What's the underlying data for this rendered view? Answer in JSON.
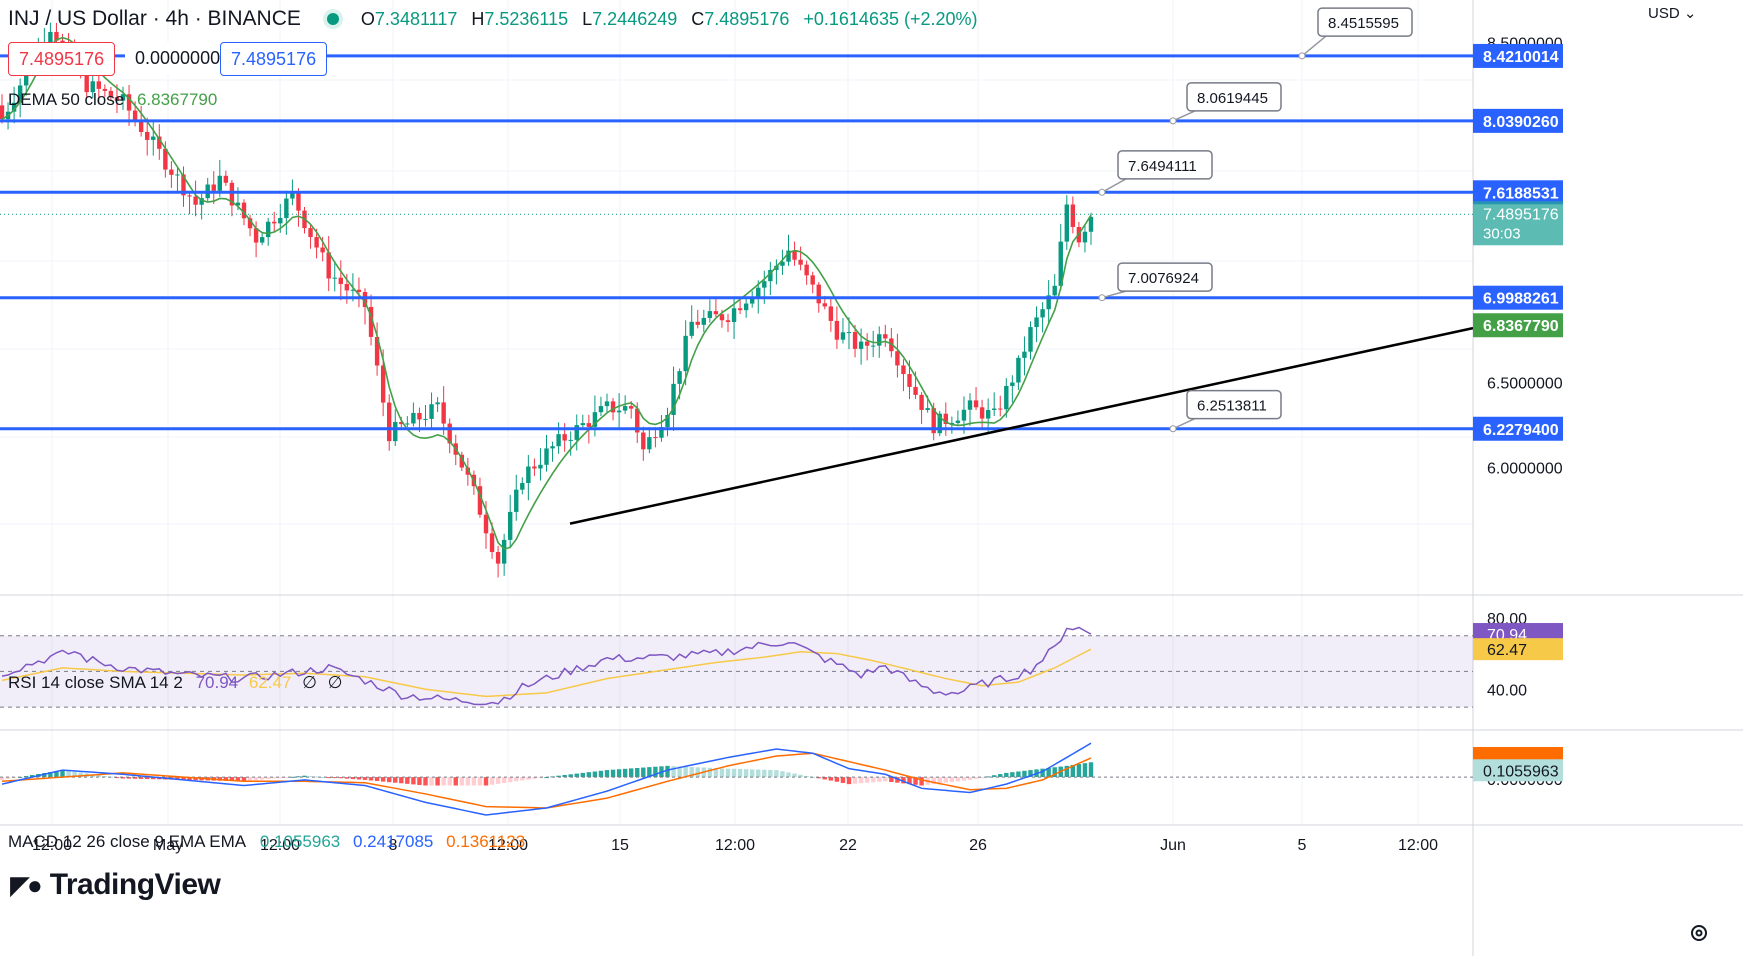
{
  "header": {
    "symbol": "INJ / US Dollar · 4h · BINANCE",
    "open_label": "O",
    "open": "7.3481117",
    "high_label": "H",
    "high": "7.5236115",
    "low_label": "L",
    "low": "7.2446249",
    "close_label": "C",
    "close": "7.4895176",
    "change": "+0.1614635 (+2.20%)",
    "bid": "7.4895176",
    "spread": "0.0000000",
    "ask": "7.4895176"
  },
  "currency_label": "USD",
  "watermark": "TradingView",
  "colors": {
    "up": "#089981",
    "down": "#f23645",
    "level": "#2962ff",
    "dema": "#43a047",
    "rsi": "#7e57c2",
    "rsi_sma": "#f7c948",
    "macd": "#2962ff",
    "signal": "#ff6d00"
  },
  "dema": {
    "label": "DEMA 50 close",
    "value": "6.8367790"
  },
  "rsi": {
    "label": "RSI 14 close SMA 14 2",
    "value": "70.94",
    "sma": "62.47",
    "extra1": "∅",
    "extra2": "∅",
    "scale": [
      "80.00",
      "40.00"
    ]
  },
  "macd": {
    "label": "MACD 12 26 close 9 EMA EMA",
    "hist": "0.1055963",
    "macd": "0.2417085",
    "signal": "0.1361123",
    "scale": [
      "0.0000000"
    ]
  },
  "chart_data": {
    "type": "candlestick",
    "symbol": "INJ/USD",
    "interval": "4h",
    "y_range": [
      5.25,
      8.75
    ],
    "price_ticks": [
      "8.5000000",
      "6.5000000",
      "6.0000000"
    ],
    "x_ticks": [
      "12:00",
      "May",
      "12:00",
      "8",
      "12:00",
      "15",
      "12:00",
      "22",
      "26",
      "Jun",
      "5",
      "12:00"
    ],
    "last_price": "7.4895176",
    "countdown": "30:03",
    "horizontal_levels": [
      {
        "value": 8.4210014,
        "label": "8.4210014"
      },
      {
        "value": 8.039026,
        "label": "8.0390260"
      },
      {
        "value": 7.6188531,
        "label": "7.6188531"
      },
      {
        "value": 6.9988261,
        "label": "6.9988261"
      },
      {
        "value": 6.22794,
        "label": "6.2279400"
      }
    ],
    "callouts": [
      "8.4515595",
      "8.0619445",
      "7.6494111",
      "7.0076924",
      "6.2513811"
    ],
    "trendline": {
      "from": {
        "x": "May 11",
        "y": 5.67
      },
      "to": {
        "x": "Jun 8",
        "y": 6.82
      }
    },
    "candle_count": 181,
    "anchors_close": [
      [
        0,
        8.05
      ],
      [
        8,
        8.6
      ],
      [
        14,
        8.25
      ],
      [
        20,
        8.15
      ],
      [
        26,
        7.85
      ],
      [
        32,
        7.55
      ],
      [
        36,
        7.7
      ],
      [
        42,
        7.35
      ],
      [
        48,
        7.6
      ],
      [
        54,
        7.15
      ],
      [
        60,
        6.95
      ],
      [
        64,
        6.2
      ],
      [
        72,
        6.35
      ],
      [
        78,
        5.85
      ],
      [
        82,
        5.45
      ],
      [
        86,
        5.95
      ],
      [
        92,
        6.15
      ],
      [
        100,
        6.35
      ],
      [
        104,
        6.35
      ],
      [
        106,
        6.1
      ],
      [
        110,
        6.35
      ],
      [
        114,
        6.85
      ],
      [
        120,
        6.9
      ],
      [
        126,
        7.1
      ],
      [
        130,
        7.28
      ],
      [
        134,
        7.05
      ],
      [
        138,
        6.8
      ],
      [
        142,
        6.7
      ],
      [
        146,
        6.8
      ],
      [
        150,
        6.5
      ],
      [
        154,
        6.25
      ],
      [
        160,
        6.35
      ],
      [
        164,
        6.3
      ],
      [
        168,
        6.6
      ],
      [
        170,
        6.8
      ],
      [
        174,
        7.05
      ],
      [
        176,
        7.55
      ],
      [
        178,
        7.35
      ],
      [
        180,
        7.49
      ]
    ],
    "anchors_rsi": [
      [
        0,
        49
      ],
      [
        8,
        58
      ],
      [
        12,
        61
      ],
      [
        14,
        57
      ],
      [
        20,
        52
      ],
      [
        30,
        48
      ],
      [
        40,
        46
      ],
      [
        50,
        50
      ],
      [
        54,
        52
      ],
      [
        60,
        45
      ],
      [
        66,
        37
      ],
      [
        74,
        34
      ],
      [
        82,
        33
      ],
      [
        86,
        41
      ],
      [
        90,
        46
      ],
      [
        100,
        57
      ],
      [
        110,
        58
      ],
      [
        118,
        60
      ],
      [
        126,
        65
      ],
      [
        130,
        67
      ],
      [
        134,
        60
      ],
      [
        138,
        54
      ],
      [
        142,
        48
      ],
      [
        146,
        53
      ],
      [
        150,
        45
      ],
      [
        154,
        39
      ],
      [
        158,
        38
      ],
      [
        162,
        43
      ],
      [
        166,
        46
      ],
      [
        170,
        51
      ],
      [
        174,
        63
      ],
      [
        176,
        75
      ],
      [
        178,
        74
      ],
      [
        180,
        70.94
      ]
    ],
    "anchors_rsi_sma": [
      [
        0,
        45
      ],
      [
        10,
        52
      ],
      [
        20,
        50
      ],
      [
        30,
        49
      ],
      [
        40,
        48
      ],
      [
        50,
        49
      ],
      [
        60,
        47
      ],
      [
        70,
        40
      ],
      [
        80,
        36
      ],
      [
        90,
        38
      ],
      [
        100,
        46
      ],
      [
        110,
        51
      ],
      [
        118,
        55
      ],
      [
        126,
        58
      ],
      [
        132,
        61
      ],
      [
        138,
        60
      ],
      [
        144,
        56
      ],
      [
        150,
        51
      ],
      [
        156,
        46
      ],
      [
        162,
        42
      ],
      [
        168,
        44
      ],
      [
        174,
        52
      ],
      [
        180,
        62.47
      ]
    ],
    "anchors_macd": [
      [
        0,
        -0.05
      ],
      [
        10,
        0.05
      ],
      [
        20,
        0.02
      ],
      [
        30,
        -0.02
      ],
      [
        40,
        -0.06
      ],
      [
        50,
        -0.02
      ],
      [
        60,
        -0.06
      ],
      [
        70,
        -0.18
      ],
      [
        80,
        -0.27
      ],
      [
        90,
        -0.22
      ],
      [
        100,
        -0.1
      ],
      [
        110,
        0.05
      ],
      [
        120,
        0.14
      ],
      [
        128,
        0.2
      ],
      [
        134,
        0.17
      ],
      [
        140,
        0.06
      ],
      [
        146,
        0.02
      ],
      [
        152,
        -0.08
      ],
      [
        160,
        -0.11
      ],
      [
        166,
        -0.05
      ],
      [
        172,
        0.04
      ],
      [
        176,
        0.14
      ],
      [
        180,
        0.2417085
      ]
    ],
    "anchors_signal": [
      [
        0,
        -0.03
      ],
      [
        10,
        0.0
      ],
      [
        20,
        0.03
      ],
      [
        30,
        0.0
      ],
      [
        40,
        -0.03
      ],
      [
        50,
        -0.03
      ],
      [
        60,
        -0.04
      ],
      [
        70,
        -0.12
      ],
      [
        80,
        -0.21
      ],
      [
        90,
        -0.22
      ],
      [
        100,
        -0.15
      ],
      [
        110,
        -0.03
      ],
      [
        120,
        0.08
      ],
      [
        128,
        0.15
      ],
      [
        134,
        0.17
      ],
      [
        140,
        0.11
      ],
      [
        146,
        0.05
      ],
      [
        152,
        -0.02
      ],
      [
        160,
        -0.09
      ],
      [
        166,
        -0.08
      ],
      [
        172,
        -0.02
      ],
      [
        176,
        0.06
      ],
      [
        180,
        0.1361123
      ]
    ]
  }
}
